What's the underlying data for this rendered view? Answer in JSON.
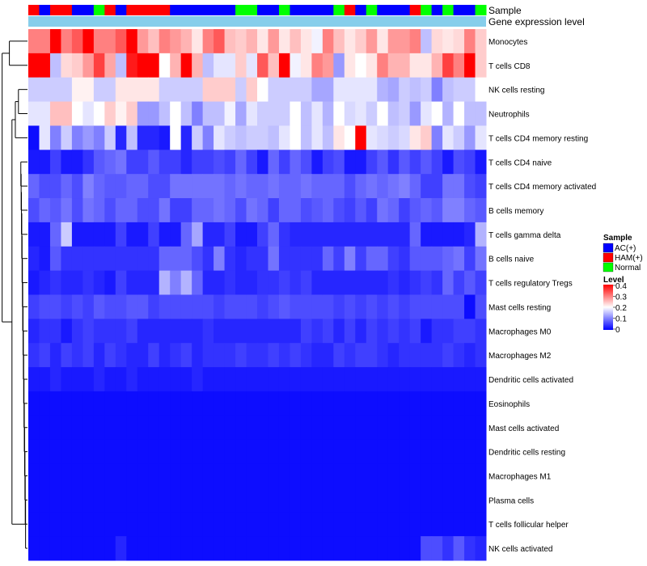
{
  "chart_data": {
    "type": "heatmap",
    "annotation_labels": {
      "sample": "Sample",
      "expression": "Gene expression level"
    },
    "sample_colors": {
      "AC(+)": "#0000ff",
      "HAM(+)": "#ff0000",
      "Normal": "#00ff00",
      "expression_bar": "#87ceeb",
      "dendrogram": "#000000"
    },
    "sample_groups": [
      "HAM(+)",
      "AC(+)",
      "HAM(+)",
      "HAM(+)",
      "AC(+)",
      "AC(+)",
      "Normal",
      "HAM(+)",
      "AC(+)",
      "HAM(+)",
      "HAM(+)",
      "HAM(+)",
      "HAM(+)",
      "AC(+)",
      "AC(+)",
      "AC(+)",
      "AC(+)",
      "AC(+)",
      "AC(+)",
      "Normal",
      "Normal",
      "AC(+)",
      "AC(+)",
      "Normal",
      "AC(+)",
      "AC(+)",
      "AC(+)",
      "AC(+)",
      "Normal",
      "HAM(+)",
      "AC(+)",
      "Normal",
      "AC(+)",
      "AC(+)",
      "AC(+)",
      "HAM(+)",
      "Normal",
      "AC(+)",
      "Normal",
      "AC(+)",
      "AC(+)",
      "Normal"
    ],
    "rows": [
      "Monocytes",
      "T cells CD8",
      "NK cells resting",
      "Neutrophils",
      "T cells CD4 memory resting",
      "T cells CD4 naive",
      "T cells CD4 memory activated",
      "B cells memory",
      "T cells gamma delta",
      "B cells naive",
      "T cells regulatory  Tregs",
      "Mast cells resting",
      "Macrophages M0",
      "Macrophages M2",
      "Dendritic cells activated",
      "Eosinophils",
      "Mast cells activated",
      "Dendritic cells resting",
      "Macrophages M1",
      "Plasma cells",
      "T cells follicular helper",
      "NK cells activated"
    ],
    "color_scale": {
      "min": 0,
      "mid": 0.2,
      "max": 0.4,
      "low": "#0000ff",
      "mid_color": "#ffffff",
      "high": "#ff0000"
    },
    "legend": {
      "sample_title": "Sample",
      "sample_entries": [
        "AC(+)",
        "HAM(+)",
        "Normal"
      ],
      "level_title": "Level",
      "level_ticks": [
        "0.4",
        "0.3",
        "0.2",
        "0.1",
        "0"
      ]
    },
    "values": [
      [
        0.3,
        0.3,
        0.4,
        0.3,
        0.33,
        0.4,
        0.3,
        0.3,
        0.33,
        0.4,
        0.28,
        0.25,
        0.3,
        0.28,
        0.26,
        0.22,
        0.3,
        0.33,
        0.25,
        0.24,
        0.26,
        0.22,
        0.28,
        0.22,
        0.25,
        0.22,
        0.19,
        0.3,
        0.25,
        0.22,
        0.24,
        0.28,
        0.22,
        0.28,
        0.28,
        0.3,
        0.15,
        0.23,
        0.22,
        0.23,
        0.3,
        0.24
      ],
      [
        0.4,
        0.4,
        0.15,
        0.23,
        0.24,
        0.28,
        0.35,
        0.27,
        0.15,
        0.38,
        0.4,
        0.4,
        0.2,
        0.26,
        0.4,
        0.26,
        0.15,
        0.18,
        0.18,
        0.24,
        0.18,
        0.33,
        0.25,
        0.4,
        0.19,
        0.22,
        0.3,
        0.28,
        0.12,
        0.22,
        0.2,
        0.22,
        0.3,
        0.26,
        0.26,
        0.22,
        0.22,
        0.26,
        0.35,
        0.3,
        0.4,
        0.24
      ],
      [
        0.16,
        0.16,
        0.16,
        0.16,
        0.21,
        0.21,
        0.16,
        0.16,
        0.22,
        0.22,
        0.22,
        0.22,
        0.16,
        0.16,
        0.16,
        0.16,
        0.24,
        0.24,
        0.24,
        0.16,
        0.24,
        0.2,
        0.16,
        0.16,
        0.16,
        0.16,
        0.13,
        0.13,
        0.18,
        0.18,
        0.18,
        0.18,
        0.14,
        0.13,
        0.16,
        0.15,
        0.16,
        0.1,
        0.15,
        0.16,
        0.16,
        0.2
      ],
      [
        0.18,
        0.18,
        0.25,
        0.25,
        0.2,
        0.18,
        0.2,
        0.24,
        0.21,
        0.24,
        0.12,
        0.12,
        0.15,
        0.2,
        0.15,
        0.1,
        0.15,
        0.15,
        0.19,
        0.13,
        0.18,
        0.16,
        0.16,
        0.16,
        0.2,
        0.15,
        0.18,
        0.14,
        0.2,
        0.17,
        0.18,
        0.16,
        0.2,
        0.15,
        0.16,
        0.12,
        0.18,
        0.2,
        0.14,
        0.2,
        0.15,
        0.15
      ],
      [
        0.01,
        0.18,
        0.1,
        0.16,
        0.1,
        0.12,
        0.1,
        0.16,
        0.03,
        0.15,
        0.03,
        0.03,
        0.02,
        0.2,
        0.03,
        0.16,
        0.1,
        0.18,
        0.16,
        0.15,
        0.16,
        0.16,
        0.15,
        0.18,
        0.2,
        0.15,
        0.18,
        0.15,
        0.22,
        0.2,
        0.4,
        0.18,
        0.17,
        0.16,
        0.17,
        0.22,
        0.24,
        0.1,
        0.18,
        0.16,
        0.12,
        0.18
      ],
      [
        0.02,
        0.02,
        0.05,
        0.02,
        0.02,
        0.04,
        0.07,
        0.08,
        0.09,
        0.05,
        0.05,
        0.07,
        0.05,
        0.05,
        0.03,
        0.05,
        0.05,
        0.06,
        0.05,
        0.08,
        0.05,
        0.02,
        0.08,
        0.05,
        0.08,
        0.06,
        0.02,
        0.05,
        0.06,
        0.02,
        0.02,
        0.05,
        0.07,
        0.04,
        0.07,
        0.05,
        0.07,
        0.05,
        0.02,
        0.06,
        0.05,
        0.02
      ],
      [
        0.08,
        0.06,
        0.06,
        0.08,
        0.06,
        0.1,
        0.08,
        0.07,
        0.07,
        0.08,
        0.08,
        0.06,
        0.06,
        0.09,
        0.09,
        0.09,
        0.09,
        0.09,
        0.08,
        0.09,
        0.08,
        0.08,
        0.09,
        0.08,
        0.08,
        0.09,
        0.08,
        0.08,
        0.08,
        0.06,
        0.08,
        0.09,
        0.08,
        0.09,
        0.1,
        0.08,
        0.05,
        0.05,
        0.09,
        0.09,
        0.06,
        0.05
      ],
      [
        0.06,
        0.08,
        0.07,
        0.09,
        0.06,
        0.09,
        0.08,
        0.06,
        0.08,
        0.08,
        0.06,
        0.06,
        0.09,
        0.05,
        0.05,
        0.08,
        0.08,
        0.09,
        0.08,
        0.06,
        0.09,
        0.08,
        0.05,
        0.08,
        0.08,
        0.06,
        0.07,
        0.08,
        0.06,
        0.05,
        0.07,
        0.05,
        0.09,
        0.08,
        0.05,
        0.07,
        0.08,
        0.07,
        0.1,
        0.1,
        0.08,
        0.07
      ],
      [
        0.02,
        0.02,
        0.08,
        0.16,
        0.02,
        0.02,
        0.02,
        0.02,
        0.05,
        0.02,
        0.02,
        0.05,
        0.02,
        0.02,
        0.08,
        0.13,
        0.03,
        0.03,
        0.05,
        0.02,
        0.02,
        0.05,
        0.08,
        0.04,
        0.03,
        0.03,
        0.03,
        0.03,
        0.03,
        0.03,
        0.03,
        0.03,
        0.03,
        0.03,
        0.03,
        0.08,
        0.02,
        0.02,
        0.02,
        0.02,
        0.03,
        0.14
      ],
      [
        0.03,
        0.02,
        0.07,
        0.04,
        0.04,
        0.04,
        0.04,
        0.04,
        0.04,
        0.04,
        0.04,
        0.04,
        0.08,
        0.08,
        0.08,
        0.06,
        0.04,
        0.1,
        0.04,
        0.03,
        0.04,
        0.04,
        0.09,
        0.04,
        0.04,
        0.04,
        0.04,
        0.08,
        0.05,
        0.1,
        0.05,
        0.08,
        0.08,
        0.05,
        0.04,
        0.07,
        0.07,
        0.07,
        0.08,
        0.09,
        0.05,
        0.09
      ],
      [
        0.02,
        0.03,
        0.04,
        0.03,
        0.03,
        0.04,
        0.03,
        0.02,
        0.05,
        0.03,
        0.03,
        0.03,
        0.14,
        0.1,
        0.14,
        0.08,
        0.03,
        0.03,
        0.04,
        0.03,
        0.03,
        0.04,
        0.04,
        0.05,
        0.04,
        0.05,
        0.03,
        0.03,
        0.03,
        0.03,
        0.03,
        0.03,
        0.03,
        0.04,
        0.03,
        0.04,
        0.05,
        0.04,
        0.08,
        0.05,
        0.07,
        0.05
      ],
      [
        0.05,
        0.06,
        0.06,
        0.05,
        0.06,
        0.05,
        0.07,
        0.06,
        0.06,
        0.07,
        0.07,
        0.05,
        0.06,
        0.06,
        0.06,
        0.06,
        0.06,
        0.05,
        0.06,
        0.06,
        0.06,
        0.05,
        0.06,
        0.07,
        0.06,
        0.06,
        0.06,
        0.06,
        0.05,
        0.06,
        0.05,
        0.06,
        0.05,
        0.06,
        0.05,
        0.06,
        0.06,
        0.06,
        0.06,
        0.06,
        0.01,
        0.06
      ],
      [
        0.03,
        0.04,
        0.04,
        0.02,
        0.04,
        0.05,
        0.04,
        0.04,
        0.04,
        0.05,
        0.03,
        0.03,
        0.03,
        0.03,
        0.03,
        0.03,
        0.04,
        0.03,
        0.03,
        0.03,
        0.03,
        0.03,
        0.03,
        0.03,
        0.03,
        0.05,
        0.04,
        0.05,
        0.03,
        0.05,
        0.03,
        0.05,
        0.04,
        0.05,
        0.04,
        0.05,
        0.02,
        0.04,
        0.04,
        0.05,
        0.05,
        0.04
      ],
      [
        0.04,
        0.05,
        0.03,
        0.05,
        0.04,
        0.05,
        0.03,
        0.05,
        0.04,
        0.03,
        0.03,
        0.05,
        0.03,
        0.04,
        0.05,
        0.03,
        0.04,
        0.04,
        0.04,
        0.05,
        0.04,
        0.04,
        0.05,
        0.04,
        0.05,
        0.04,
        0.03,
        0.03,
        0.05,
        0.04,
        0.05,
        0.05,
        0.04,
        0.03,
        0.04,
        0.04,
        0.04,
        0.04,
        0.05,
        0.04,
        0.03,
        0.04
      ],
      [
        0.02,
        0.02,
        0.03,
        0.02,
        0.02,
        0.02,
        0.03,
        0.02,
        0.02,
        0.03,
        0.02,
        0.02,
        0.02,
        0.02,
        0.02,
        0.03,
        0.02,
        0.02,
        0.02,
        0.02,
        0.02,
        0.02,
        0.02,
        0.02,
        0.02,
        0.02,
        0.02,
        0.02,
        0.02,
        0.02,
        0.02,
        0.02,
        0.02,
        0.02,
        0.02,
        0.02,
        0.02,
        0.02,
        0.02,
        0.02,
        0.02,
        0.02
      ],
      [
        0.01,
        0.01,
        0.01,
        0.01,
        0.01,
        0.01,
        0.01,
        0.01,
        0.01,
        0.01,
        0.01,
        0.01,
        0.01,
        0.01,
        0.01,
        0.01,
        0.01,
        0.01,
        0.01,
        0.01,
        0.01,
        0.01,
        0.01,
        0.01,
        0.01,
        0.01,
        0.01,
        0.01,
        0.01,
        0.01,
        0.01,
        0.01,
        0.01,
        0.01,
        0.01,
        0.01,
        0.01,
        0.01,
        0.01,
        0.01,
        0.01,
        0.01
      ],
      [
        0.01,
        0.01,
        0.01,
        0.01,
        0.01,
        0.01,
        0.01,
        0.01,
        0.01,
        0.01,
        0.01,
        0.01,
        0.01,
        0.01,
        0.01,
        0.01,
        0.01,
        0.01,
        0.01,
        0.01,
        0.01,
        0.01,
        0.01,
        0.01,
        0.01,
        0.01,
        0.01,
        0.01,
        0.01,
        0.01,
        0.01,
        0.01,
        0.01,
        0.01,
        0.01,
        0.01,
        0.01,
        0.01,
        0.01,
        0.01,
        0.01,
        0.01
      ],
      [
        0.01,
        0.01,
        0.01,
        0.01,
        0.01,
        0.01,
        0.01,
        0.01,
        0.01,
        0.01,
        0.01,
        0.01,
        0.01,
        0.01,
        0.01,
        0.01,
        0.01,
        0.01,
        0.01,
        0.01,
        0.01,
        0.01,
        0.01,
        0.01,
        0.01,
        0.01,
        0.01,
        0.01,
        0.01,
        0.01,
        0.01,
        0.01,
        0.01,
        0.01,
        0.01,
        0.01,
        0.01,
        0.01,
        0.01,
        0.01,
        0.01,
        0.01
      ],
      [
        0.01,
        0.01,
        0.01,
        0.01,
        0.01,
        0.01,
        0.01,
        0.01,
        0.01,
        0.01,
        0.01,
        0.01,
        0.01,
        0.01,
        0.01,
        0.01,
        0.01,
        0.01,
        0.01,
        0.01,
        0.01,
        0.01,
        0.01,
        0.01,
        0.01,
        0.01,
        0.01,
        0.01,
        0.01,
        0.01,
        0.01,
        0.01,
        0.01,
        0.01,
        0.01,
        0.01,
        0.01,
        0.01,
        0.01,
        0.01,
        0.01,
        0.01
      ],
      [
        0.01,
        0.01,
        0.01,
        0.01,
        0.01,
        0.01,
        0.01,
        0.01,
        0.01,
        0.01,
        0.01,
        0.01,
        0.01,
        0.01,
        0.01,
        0.01,
        0.01,
        0.01,
        0.01,
        0.01,
        0.01,
        0.01,
        0.01,
        0.01,
        0.01,
        0.01,
        0.01,
        0.01,
        0.01,
        0.01,
        0.01,
        0.01,
        0.01,
        0.01,
        0.01,
        0.01,
        0.01,
        0.01,
        0.01,
        0.01,
        0.01,
        0.01
      ],
      [
        0.01,
        0.01,
        0.01,
        0.01,
        0.01,
        0.01,
        0.01,
        0.01,
        0.01,
        0.01,
        0.01,
        0.01,
        0.01,
        0.01,
        0.01,
        0.01,
        0.01,
        0.01,
        0.01,
        0.01,
        0.01,
        0.01,
        0.01,
        0.01,
        0.01,
        0.01,
        0.01,
        0.01,
        0.01,
        0.01,
        0.01,
        0.01,
        0.01,
        0.01,
        0.01,
        0.01,
        0.01,
        0.01,
        0.01,
        0.01,
        0.01,
        0.01
      ],
      [
        0.01,
        0.01,
        0.01,
        0.01,
        0.01,
        0.01,
        0.01,
        0.01,
        0.03,
        0.01,
        0.01,
        0.01,
        0.01,
        0.01,
        0.01,
        0.01,
        0.01,
        0.01,
        0.01,
        0.01,
        0.01,
        0.01,
        0.01,
        0.01,
        0.01,
        0.01,
        0.01,
        0.01,
        0.01,
        0.01,
        0.01,
        0.01,
        0.01,
        0.01,
        0.01,
        0.01,
        0.06,
        0.06,
        0.04,
        0.07,
        0.04,
        0.03
      ]
    ]
  }
}
